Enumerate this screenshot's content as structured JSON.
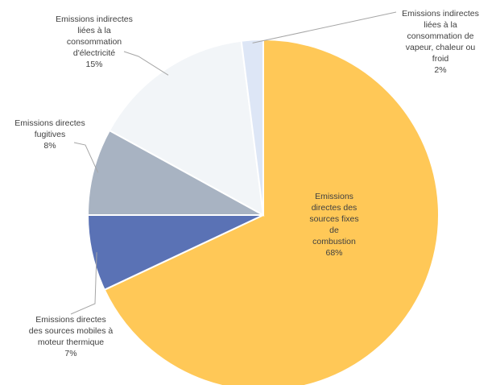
{
  "chart_data": {
    "type": "pie",
    "start_angle_deg": 0,
    "direction": "clockwise",
    "slices": [
      {
        "lines": [
          "Emissions",
          "directes des",
          "sources fixes",
          "de",
          "combustion"
        ],
        "pct_label": "68%",
        "value": 68,
        "color": "#FFC857"
      },
      {
        "lines": [
          "Emissions directes",
          "des sources mobiles à",
          "moteur thermique"
        ],
        "pct_label": "7%",
        "value": 7,
        "color": "#5A72B5"
      },
      {
        "lines": [
          "Emissions directes",
          "fugitives"
        ],
        "pct_label": "8%",
        "value": 8,
        "color": "#A8B3C2"
      },
      {
        "lines": [
          "Emissions indirectes",
          "liées à la",
          "consommation",
          "d'électricité"
        ],
        "pct_label": "15%",
        "value": 15,
        "color": "#F2F5F8"
      },
      {
        "lines": [
          "Emissions indirectes",
          "liées à la",
          "consommation de",
          "vapeur, chaleur ou",
          "froid"
        ],
        "pct_label": "2%",
        "value": 2,
        "color": "#DDE6F6"
      }
    ]
  }
}
